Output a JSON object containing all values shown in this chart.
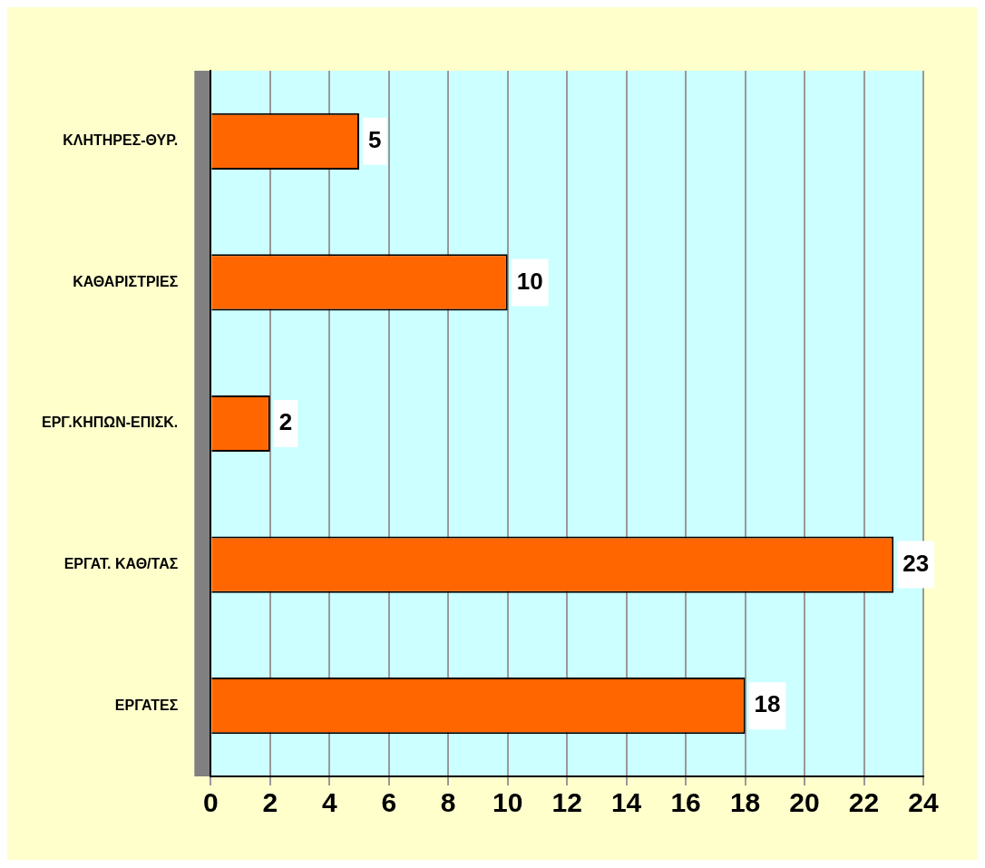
{
  "chart_data": {
    "type": "bar",
    "orientation": "horizontal",
    "categories": [
      "ΚΛΗΤΗΡΕΣ-ΘΥΡ.",
      "ΚΑΘΑΡΙΣΤΡΙΕΣ",
      "ΕΡΓ.ΚΗΠΩΝ-ΕΠΙΣΚ.",
      "ΕΡΓΑΤ. ΚΑΘ/ΤΑΣ",
      "ΕΡΓΑΤΕΣ"
    ],
    "values": [
      5,
      10,
      2,
      23,
      18
    ],
    "color": "#ff6600",
    "xlim": [
      0,
      24
    ],
    "xticks": [
      0,
      2,
      4,
      6,
      8,
      10,
      12,
      14,
      16,
      18,
      20,
      22,
      24
    ],
    "grid": "x",
    "data_labels": true,
    "legend": false
  }
}
